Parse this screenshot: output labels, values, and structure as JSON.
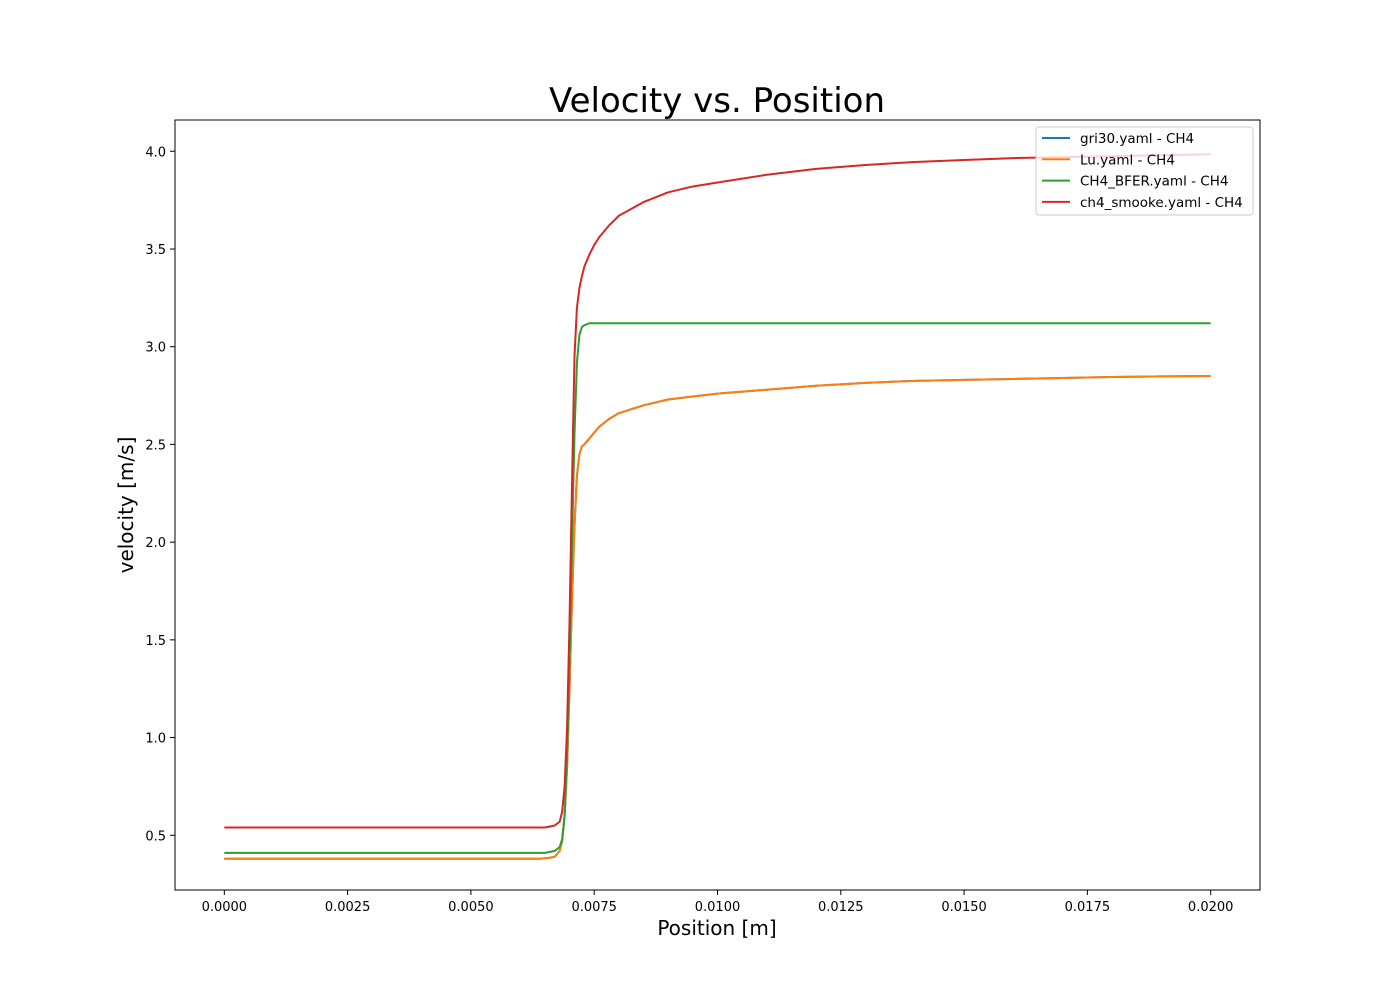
{
  "chart_data": {
    "type": "line",
    "title": "Velocity vs. Position",
    "xlabel": "Position [m]",
    "ylabel": "velocity [m/s]",
    "xlim": [
      -0.001,
      0.021
    ],
    "ylim": [
      0.22,
      4.16
    ],
    "xticks": [
      "0.0000",
      "0.0025",
      "0.0050",
      "0.0075",
      "0.0100",
      "0.0125",
      "0.0150",
      "0.0175",
      "0.0200"
    ],
    "yticks": [
      "0.5",
      "1.0",
      "1.5",
      "2.0",
      "2.5",
      "3.0",
      "3.5",
      "4.0"
    ],
    "grid": false,
    "legend_position": "top-right",
    "series": [
      {
        "name": "gri30.yaml - CH4",
        "color": "#1f77b4",
        "x": [
          0,
          0.0064,
          0.0066,
          0.0067,
          0.0068,
          0.00685,
          0.0069,
          0.00695,
          0.007,
          0.00705,
          0.0071,
          0.00715,
          0.0072,
          0.00725,
          0.0073,
          0.0074,
          0.0075,
          0.0076,
          0.0078,
          0.008,
          0.0085,
          0.009,
          0.0095,
          0.01,
          0.011,
          0.012,
          0.013,
          0.014,
          0.015,
          0.016,
          0.017,
          0.018,
          0.019,
          0.02
        ],
        "y": [
          0.38,
          0.38,
          0.385,
          0.39,
          0.42,
          0.47,
          0.6,
          0.85,
          1.25,
          1.7,
          2.08,
          2.34,
          2.45,
          2.49,
          2.5,
          2.53,
          2.56,
          2.59,
          2.63,
          2.66,
          2.7,
          2.73,
          2.745,
          2.76,
          2.78,
          2.8,
          2.815,
          2.825,
          2.83,
          2.835,
          2.84,
          2.845,
          2.848,
          2.85
        ]
      },
      {
        "name": "Lu.yaml - CH4",
        "color": "#ff7f0e",
        "x": [
          0,
          0.0064,
          0.0066,
          0.0067,
          0.0068,
          0.00685,
          0.0069,
          0.00695,
          0.007,
          0.00705,
          0.0071,
          0.00715,
          0.0072,
          0.00725,
          0.0073,
          0.0074,
          0.0075,
          0.0076,
          0.0078,
          0.008,
          0.0085,
          0.009,
          0.0095,
          0.01,
          0.011,
          0.012,
          0.013,
          0.014,
          0.015,
          0.016,
          0.017,
          0.018,
          0.019,
          0.02
        ],
        "y": [
          0.38,
          0.38,
          0.385,
          0.39,
          0.42,
          0.47,
          0.6,
          0.85,
          1.25,
          1.7,
          2.08,
          2.34,
          2.45,
          2.49,
          2.5,
          2.53,
          2.56,
          2.59,
          2.63,
          2.66,
          2.7,
          2.73,
          2.745,
          2.76,
          2.78,
          2.8,
          2.815,
          2.825,
          2.83,
          2.835,
          2.84,
          2.845,
          2.848,
          2.85
        ]
      },
      {
        "name": "CH4_BFER.yaml - CH4",
        "color": "#2ca02c",
        "x": [
          0,
          0.0065,
          0.0067,
          0.0068,
          0.00685,
          0.0069,
          0.00695,
          0.007,
          0.00705,
          0.0071,
          0.00715,
          0.0072,
          0.00725,
          0.0073,
          0.0074,
          0.0075,
          0.0077,
          0.008,
          0.01,
          0.015,
          0.02
        ],
        "y": [
          0.41,
          0.41,
          0.42,
          0.44,
          0.48,
          0.6,
          0.9,
          1.4,
          2.0,
          2.55,
          2.92,
          3.06,
          3.1,
          3.11,
          3.12,
          3.12,
          3.12,
          3.12,
          3.12,
          3.12,
          3.12
        ]
      },
      {
        "name": "ch4_smooke.yaml - CH4",
        "color": "#d62728",
        "x": [
          0,
          0.0065,
          0.0067,
          0.0068,
          0.00685,
          0.0069,
          0.00695,
          0.007,
          0.00705,
          0.0071,
          0.00715,
          0.0072,
          0.00725,
          0.0073,
          0.0074,
          0.0075,
          0.0076,
          0.0078,
          0.008,
          0.0085,
          0.009,
          0.0095,
          0.01,
          0.011,
          0.012,
          0.013,
          0.014,
          0.015,
          0.016,
          0.017,
          0.018,
          0.019,
          0.02
        ],
        "y": [
          0.54,
          0.54,
          0.55,
          0.57,
          0.62,
          0.75,
          1.05,
          1.6,
          2.3,
          2.95,
          3.2,
          3.3,
          3.36,
          3.41,
          3.47,
          3.52,
          3.56,
          3.62,
          3.67,
          3.74,
          3.79,
          3.82,
          3.84,
          3.88,
          3.91,
          3.93,
          3.945,
          3.955,
          3.965,
          3.97,
          3.975,
          3.98,
          3.985
        ]
      }
    ]
  }
}
